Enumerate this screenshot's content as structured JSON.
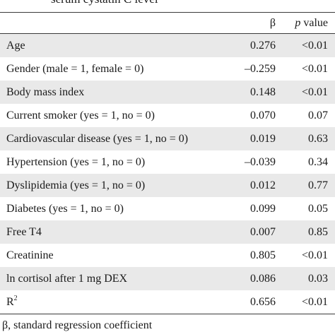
{
  "caption_fragment": "serum cystatin C level",
  "header": {
    "variable": "",
    "beta": "β",
    "p_value_italic": "p",
    "p_value_rest": " value"
  },
  "rows": [
    {
      "variable": "Age",
      "beta": "0.276",
      "p": "<0.01"
    },
    {
      "variable": "Gender (male = 1, female = 0)",
      "beta": "–0.259",
      "p": "<0.01"
    },
    {
      "variable": "Body mass index",
      "beta": "0.148",
      "p": "<0.01"
    },
    {
      "variable": "Current smoker (yes = 1, no = 0)",
      "beta": "0.070",
      "p": "0.07"
    },
    {
      "variable": "Cardiovascular disease (yes = 1, no = 0)",
      "beta": "0.019",
      "p": "0.63"
    },
    {
      "variable": "Hypertension (yes = 1, no = 0)",
      "beta": "–0.039",
      "p": "0.34"
    },
    {
      "variable": "Dyslipidemia (yes = 1, no = 0)",
      "beta": "0.012",
      "p": "0.77"
    },
    {
      "variable": "Diabetes (yes = 1, no = 0)",
      "beta": "0.099",
      "p": "0.05"
    },
    {
      "variable": "Free T4",
      "beta": "0.007",
      "p": "0.85"
    },
    {
      "variable": "Creatinine",
      "beta": "0.805",
      "p": "<0.01"
    },
    {
      "variable": "ln cortisol after 1 mg DEX",
      "beta": "0.086",
      "p": "0.03"
    }
  ],
  "r_squared": {
    "label": "R",
    "superscript": "2",
    "beta": "0.656",
    "p": "<0.01"
  },
  "footnote": "β, standard regression coefficient"
}
